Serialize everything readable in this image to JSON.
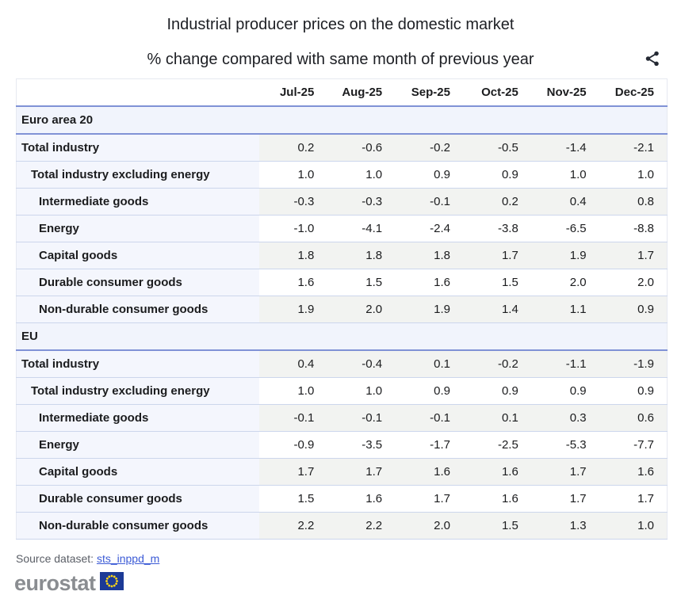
{
  "chart_data": {
    "type": "table",
    "title": "Industrial producer prices on the domestic market",
    "subtitle": "% change compared with same month of previous year",
    "columns": [
      "Jul-25",
      "Aug-25",
      "Sep-25",
      "Oct-25",
      "Nov-25",
      "Dec-25"
    ],
    "sections": [
      {
        "name": "Euro area 20",
        "rows": [
          {
            "label": "Total industry",
            "indent": 0,
            "values": [
              "0.2",
              "-0.6",
              "-0.2",
              "-0.5",
              "-1.4",
              "-2.1"
            ]
          },
          {
            "label": "Total industry excluding energy",
            "indent": 1,
            "values": [
              "1.0",
              "1.0",
              "0.9",
              "0.9",
              "1.0",
              "1.0"
            ]
          },
          {
            "label": "Intermediate goods",
            "indent": 2,
            "values": [
              "-0.3",
              "-0.3",
              "-0.1",
              "0.2",
              "0.4",
              "0.8"
            ]
          },
          {
            "label": "Energy",
            "indent": 2,
            "values": [
              "-1.0",
              "-4.1",
              "-2.4",
              "-3.8",
              "-6.5",
              "-8.8"
            ]
          },
          {
            "label": "Capital goods",
            "indent": 2,
            "values": [
              "1.8",
              "1.8",
              "1.8",
              "1.7",
              "1.9",
              "1.7"
            ]
          },
          {
            "label": "Durable consumer goods",
            "indent": 2,
            "values": [
              "1.6",
              "1.5",
              "1.6",
              "1.5",
              "2.0",
              "2.0"
            ]
          },
          {
            "label": "Non-durable consumer goods",
            "indent": 2,
            "values": [
              "1.9",
              "2.0",
              "1.9",
              "1.4",
              "1.1",
              "0.9"
            ]
          }
        ]
      },
      {
        "name": "EU",
        "rows": [
          {
            "label": "Total industry",
            "indent": 0,
            "values": [
              "0.4",
              "-0.4",
              "0.1",
              "-0.2",
              "-1.1",
              "-1.9"
            ]
          },
          {
            "label": "Total industry excluding energy",
            "indent": 1,
            "values": [
              "1.0",
              "1.0",
              "0.9",
              "0.9",
              "0.9",
              "0.9"
            ]
          },
          {
            "label": "Intermediate goods",
            "indent": 2,
            "values": [
              "-0.1",
              "-0.1",
              "-0.1",
              "0.1",
              "0.3",
              "0.6"
            ]
          },
          {
            "label": "Energy",
            "indent": 2,
            "values": [
              "-0.9",
              "-3.5",
              "-1.7",
              "-2.5",
              "-5.3",
              "-7.7"
            ]
          },
          {
            "label": "Capital goods",
            "indent": 2,
            "values": [
              "1.7",
              "1.7",
              "1.6",
              "1.6",
              "1.7",
              "1.6"
            ]
          },
          {
            "label": "Durable consumer goods",
            "indent": 2,
            "values": [
              "1.5",
              "1.6",
              "1.7",
              "1.6",
              "1.7",
              "1.7"
            ]
          },
          {
            "label": "Non-durable consumer goods",
            "indent": 2,
            "values": [
              "2.2",
              "2.2",
              "2.0",
              "1.5",
              "1.3",
              "1.0"
            ]
          }
        ]
      }
    ]
  },
  "footer": {
    "source_label": "Source dataset:",
    "source_link_text": "sts_inppd_m",
    "logo_text": "eurostat"
  },
  "icons": {
    "share": "share-icon",
    "eu_flag": "eu-flag-icon"
  },
  "colors": {
    "accent_border": "#8092d6",
    "row_separator": "#ccd6ec",
    "section_bg": "#f1f4fc",
    "label_bg": "#f4f6fd",
    "shade_bg": "#f2f3f1",
    "text": "#1b1c1e",
    "muted_text": "#5a5e66",
    "link": "#3c5bd6",
    "logo_grey": "#8a8d91",
    "flag_blue": "#1c3a96",
    "flag_star_yellow": "#ffd617"
  }
}
